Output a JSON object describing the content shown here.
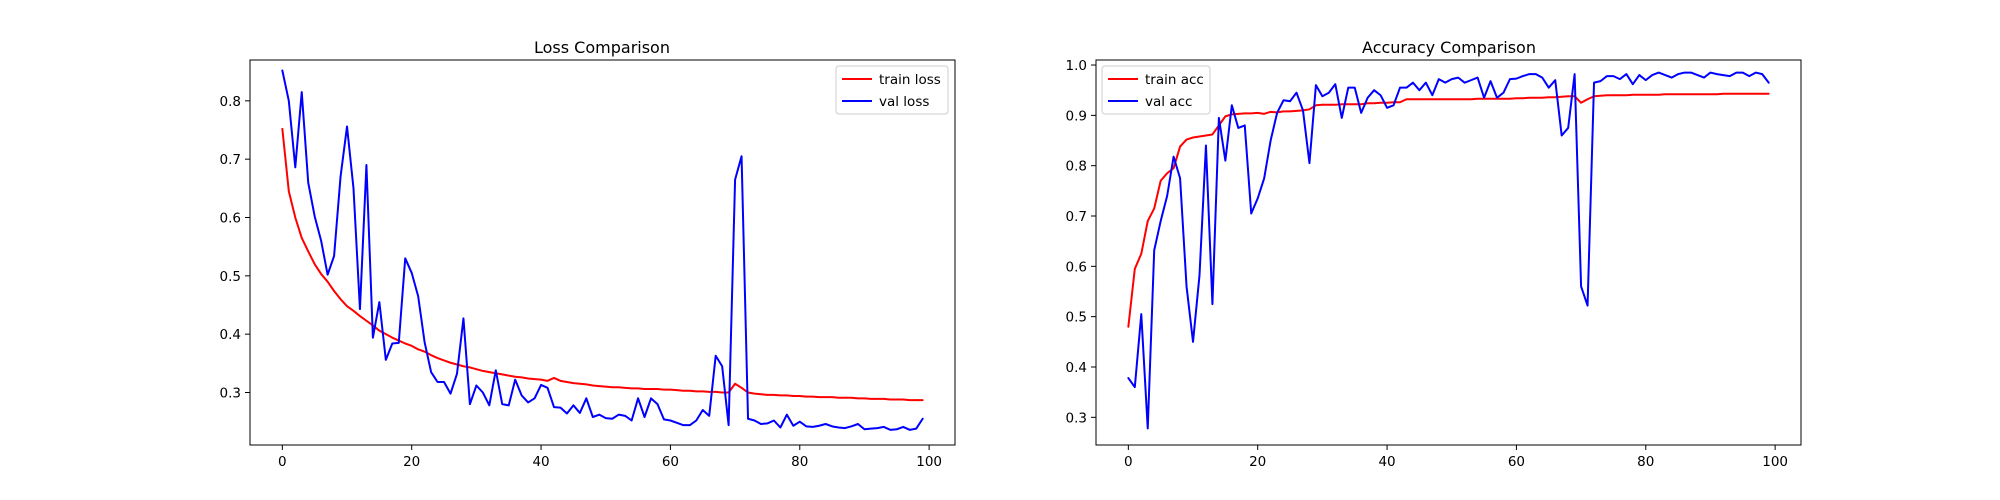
{
  "chart_data": [
    {
      "type": "line",
      "title": "Loss Comparison",
      "xlabel": "",
      "ylabel": "",
      "xlim": [
        -5,
        104
      ],
      "ylim": [
        0.21,
        0.87
      ],
      "xticks": [
        0,
        20,
        40,
        60,
        80,
        100
      ],
      "yticks": [
        0.3,
        0.4,
        0.5,
        0.6,
        0.7,
        0.8
      ],
      "xtick_labels": [
        "0",
        "20",
        "40",
        "60",
        "80",
        "100"
      ],
      "ytick_labels": [
        "0.3",
        "0.4",
        "0.5",
        "0.6",
        "0.7",
        "0.8"
      ],
      "grid": false,
      "legend": "upper right",
      "series": [
        {
          "name": "train loss",
          "color": "#ff0000",
          "values": [
            0.752,
            0.645,
            0.6,
            0.565,
            0.542,
            0.52,
            0.503,
            0.49,
            0.474,
            0.46,
            0.448,
            0.44,
            0.431,
            0.423,
            0.415,
            0.406,
            0.4,
            0.394,
            0.389,
            0.384,
            0.38,
            0.374,
            0.37,
            0.364,
            0.359,
            0.355,
            0.351,
            0.348,
            0.345,
            0.343,
            0.34,
            0.337,
            0.335,
            0.333,
            0.331,
            0.329,
            0.327,
            0.326,
            0.324,
            0.323,
            0.322,
            0.32,
            0.325,
            0.32,
            0.318,
            0.316,
            0.315,
            0.314,
            0.312,
            0.311,
            0.31,
            0.309,
            0.309,
            0.308,
            0.307,
            0.307,
            0.306,
            0.306,
            0.306,
            0.305,
            0.305,
            0.304,
            0.303,
            0.303,
            0.302,
            0.302,
            0.301,
            0.301,
            0.3,
            0.3,
            0.315,
            0.308,
            0.3,
            0.298,
            0.297,
            0.296,
            0.296,
            0.295,
            0.295,
            0.294,
            0.294,
            0.293,
            0.293,
            0.292,
            0.292,
            0.292,
            0.291,
            0.291,
            0.291,
            0.29,
            0.29,
            0.289,
            0.289,
            0.289,
            0.288,
            0.288,
            0.288,
            0.287,
            0.287,
            0.287
          ]
        },
        {
          "name": "val loss",
          "color": "#0000ff",
          "values": [
            0.852,
            0.8,
            0.686,
            0.815,
            0.66,
            0.602,
            0.56,
            0.502,
            0.534,
            0.67,
            0.756,
            0.65,
            0.443,
            0.69,
            0.394,
            0.455,
            0.356,
            0.384,
            0.385,
            0.53,
            0.505,
            0.465,
            0.386,
            0.335,
            0.318,
            0.318,
            0.298,
            0.332,
            0.427,
            0.28,
            0.312,
            0.3,
            0.278,
            0.338,
            0.28,
            0.278,
            0.322,
            0.295,
            0.283,
            0.29,
            0.313,
            0.308,
            0.275,
            0.274,
            0.264,
            0.278,
            0.265,
            0.29,
            0.258,
            0.262,
            0.256,
            0.255,
            0.262,
            0.26,
            0.252,
            0.29,
            0.258,
            0.29,
            0.28,
            0.254,
            0.252,
            0.248,
            0.244,
            0.244,
            0.252,
            0.27,
            0.26,
            0.363,
            0.345,
            0.244,
            0.665,
            0.705,
            0.255,
            0.252,
            0.246,
            0.247,
            0.252,
            0.24,
            0.262,
            0.243,
            0.25,
            0.242,
            0.241,
            0.243,
            0.246,
            0.242,
            0.24,
            0.239,
            0.242,
            0.246,
            0.237,
            0.238,
            0.239,
            0.241,
            0.236,
            0.237,
            0.241,
            0.236,
            0.238,
            0.255
          ]
        }
      ]
    },
    {
      "type": "line",
      "title": "Accuracy Comparison",
      "xlabel": "",
      "ylabel": "",
      "xlim": [
        -5,
        104
      ],
      "ylim": [
        0.245,
        1.01
      ],
      "xticks": [
        0,
        20,
        40,
        60,
        80,
        100
      ],
      "yticks": [
        0.3,
        0.4,
        0.5,
        0.6,
        0.7,
        0.8,
        0.9,
        1.0
      ],
      "xtick_labels": [
        "0",
        "20",
        "40",
        "60",
        "80",
        "100"
      ],
      "ytick_labels": [
        "0.3",
        "0.4",
        "0.5",
        "0.6",
        "0.7",
        "0.8",
        "0.9",
        "1.0"
      ],
      "grid": false,
      "legend": "upper left",
      "series": [
        {
          "name": "train acc",
          "color": "#ff0000",
          "values": [
            0.48,
            0.595,
            0.625,
            0.69,
            0.715,
            0.77,
            0.785,
            0.795,
            0.838,
            0.852,
            0.856,
            0.858,
            0.86,
            0.862,
            0.88,
            0.898,
            0.902,
            0.903,
            0.904,
            0.904,
            0.905,
            0.903,
            0.907,
            0.906,
            0.908,
            0.908,
            0.909,
            0.91,
            0.912,
            0.92,
            0.921,
            0.921,
            0.921,
            0.922,
            0.922,
            0.922,
            0.922,
            0.924,
            0.924,
            0.925,
            0.925,
            0.926,
            0.926,
            0.932,
            0.932,
            0.932,
            0.932,
            0.932,
            0.932,
            0.932,
            0.932,
            0.932,
            0.932,
            0.932,
            0.933,
            0.933,
            0.933,
            0.933,
            0.933,
            0.933,
            0.934,
            0.934,
            0.935,
            0.935,
            0.935,
            0.936,
            0.936,
            0.937,
            0.938,
            0.938,
            0.925,
            0.932,
            0.938,
            0.939,
            0.94,
            0.94,
            0.94,
            0.94,
            0.941,
            0.941,
            0.941,
            0.941,
            0.941,
            0.942,
            0.942,
            0.942,
            0.942,
            0.942,
            0.942,
            0.942,
            0.942,
            0.942,
            0.943,
            0.943,
            0.943,
            0.943,
            0.943,
            0.943,
            0.943,
            0.943
          ]
        },
        {
          "name": "val acc",
          "color": "#0000ff",
          "values": [
            0.378,
            0.36,
            0.505,
            0.278,
            0.632,
            0.69,
            0.74,
            0.818,
            0.775,
            0.56,
            0.45,
            0.582,
            0.84,
            0.525,
            0.895,
            0.81,
            0.92,
            0.875,
            0.88,
            0.705,
            0.735,
            0.775,
            0.85,
            0.905,
            0.93,
            0.928,
            0.945,
            0.91,
            0.805,
            0.96,
            0.938,
            0.945,
            0.962,
            0.895,
            0.955,
            0.955,
            0.905,
            0.935,
            0.95,
            0.94,
            0.915,
            0.92,
            0.955,
            0.955,
            0.965,
            0.95,
            0.965,
            0.94,
            0.972,
            0.965,
            0.972,
            0.975,
            0.965,
            0.97,
            0.975,
            0.935,
            0.968,
            0.935,
            0.945,
            0.972,
            0.973,
            0.978,
            0.982,
            0.982,
            0.975,
            0.955,
            0.97,
            0.86,
            0.875,
            0.982,
            0.56,
            0.522,
            0.965,
            0.968,
            0.978,
            0.978,
            0.972,
            0.982,
            0.962,
            0.98,
            0.97,
            0.98,
            0.985,
            0.98,
            0.975,
            0.982,
            0.985,
            0.985,
            0.98,
            0.975,
            0.985,
            0.982,
            0.98,
            0.978,
            0.985,
            0.985,
            0.978,
            0.985,
            0.982,
            0.965
          ]
        }
      ]
    }
  ]
}
